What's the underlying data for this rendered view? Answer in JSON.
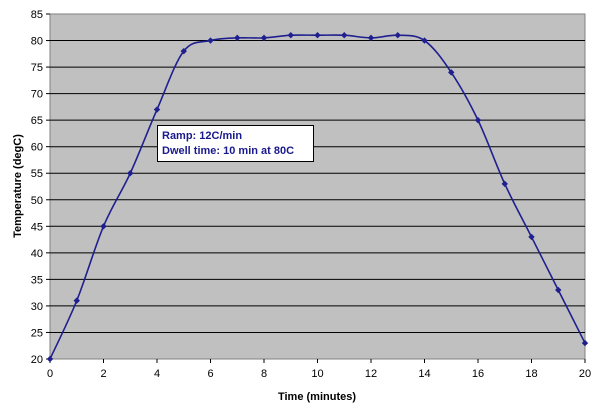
{
  "chart_data": {
    "type": "line",
    "xlabel": "Time (minutes)",
    "ylabel": "Temperature (degC)",
    "xlim": [
      0,
      20
    ],
    "ylim": [
      20,
      85
    ],
    "xticks": [
      0,
      2,
      4,
      6,
      8,
      10,
      12,
      14,
      16,
      18,
      20
    ],
    "yticks": [
      20,
      25,
      30,
      35,
      40,
      45,
      50,
      55,
      60,
      65,
      70,
      75,
      80,
      85
    ],
    "grid": "horizontal",
    "series": [
      {
        "x": [
          0,
          1,
          2,
          3,
          4,
          5,
          6,
          7,
          8,
          9,
          10,
          11,
          12,
          13,
          14,
          15,
          16,
          17,
          18,
          19,
          20
        ],
        "y": [
          20,
          31,
          45,
          55,
          67,
          78,
          80,
          80.5,
          80.5,
          81,
          81,
          81,
          80.5,
          81,
          80,
          74,
          65,
          53,
          43,
          33,
          23
        ]
      }
    ],
    "colors": {
      "series": "#1f1f8f",
      "plot_background": "#c0c0c0",
      "grid": "#000000"
    },
    "annotation": [
      "Ramp: 12C/min",
      "Dwell time: 10 min at 80C"
    ]
  }
}
